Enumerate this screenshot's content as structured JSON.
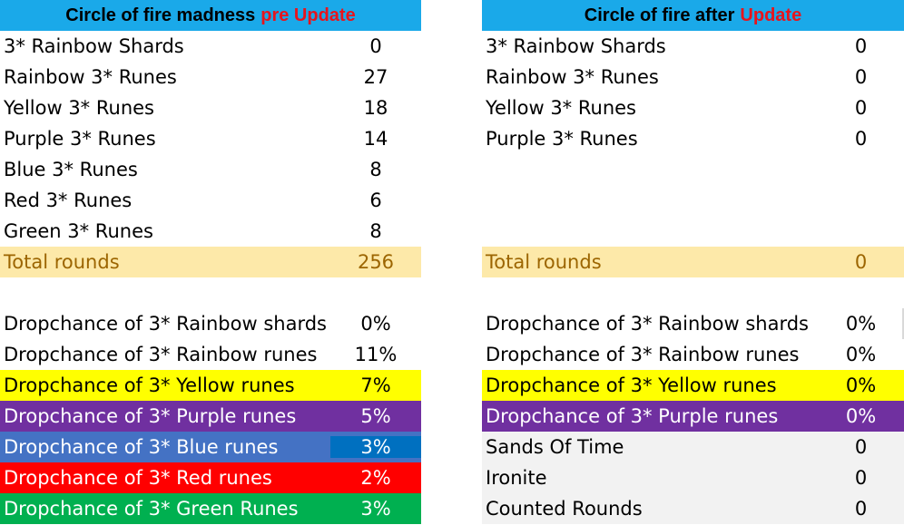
{
  "left": {
    "title_main": "Circle of fire madness",
    "title_accent": "pre Update",
    "rows": [
      {
        "label": "3* Rainbow Shards",
        "value": "0"
      },
      {
        "label": "Rainbow 3* Runes",
        "value": "27"
      },
      {
        "label": "Yellow 3* Runes",
        "value": "18"
      },
      {
        "label": "Purple 3* Runes",
        "value": "14"
      },
      {
        "label": "Blue 3* Runes",
        "value": "8"
      },
      {
        "label": "Red 3* Runes",
        "value": "6"
      },
      {
        "label": "Green 3* Runes",
        "value": "8"
      }
    ],
    "total": {
      "label": "Total rounds",
      "value": "256"
    },
    "drops": [
      {
        "label": "Dropchance of 3* Rainbow shards",
        "value": "0%"
      },
      {
        "label": "Dropchance of 3* Rainbow runes",
        "value": "11%"
      },
      {
        "label": "Dropchance of 3* Yellow runes",
        "value": "7%"
      },
      {
        "label": "Dropchance of 3* Purple runes",
        "value": "5%"
      },
      {
        "label": "Dropchance of 3* Blue runes",
        "value": "3%"
      },
      {
        "label": "Dropchance of 3* Red runes",
        "value": "2%"
      },
      {
        "label": "Dropchance of 3* Green Runes",
        "value": "3%"
      }
    ]
  },
  "right": {
    "title_main": "Circle of fire after",
    "title_accent": "Update",
    "rows": [
      {
        "label": "3* Rainbow Shards",
        "value": "0"
      },
      {
        "label": "Rainbow 3* Runes",
        "value": "0"
      },
      {
        "label": "Yellow 3* Runes",
        "value": "0"
      },
      {
        "label": "Purple 3* Runes",
        "value": "0"
      }
    ],
    "total": {
      "label": "Total rounds",
      "value": "0"
    },
    "drops": [
      {
        "label": "Dropchance of 3* Rainbow shards",
        "value": "0%"
      },
      {
        "label": "Dropchance of 3* Rainbow runes",
        "value": "0%"
      },
      {
        "label": "Dropchance of 3* Yellow runes",
        "value": "0%"
      },
      {
        "label": "Dropchance of 3* Purple runes",
        "value": "0%"
      },
      {
        "label": "Sands Of Time",
        "value": "0"
      },
      {
        "label": "Ironite",
        "value": "0"
      },
      {
        "label": "Counted Rounds",
        "value": "0"
      }
    ]
  },
  "colors": {
    "header": "#1aa9e9",
    "accent_text": "#e8141c",
    "total_bg": "#fde9a9",
    "total_text": "#9c6500",
    "yellow": "#ffff00",
    "purple": "#7030a0",
    "blue": "#4472c4",
    "blue_value": "#0070c0",
    "red": "#ff0000",
    "green": "#00b050",
    "grey": "#f2f2f2"
  }
}
